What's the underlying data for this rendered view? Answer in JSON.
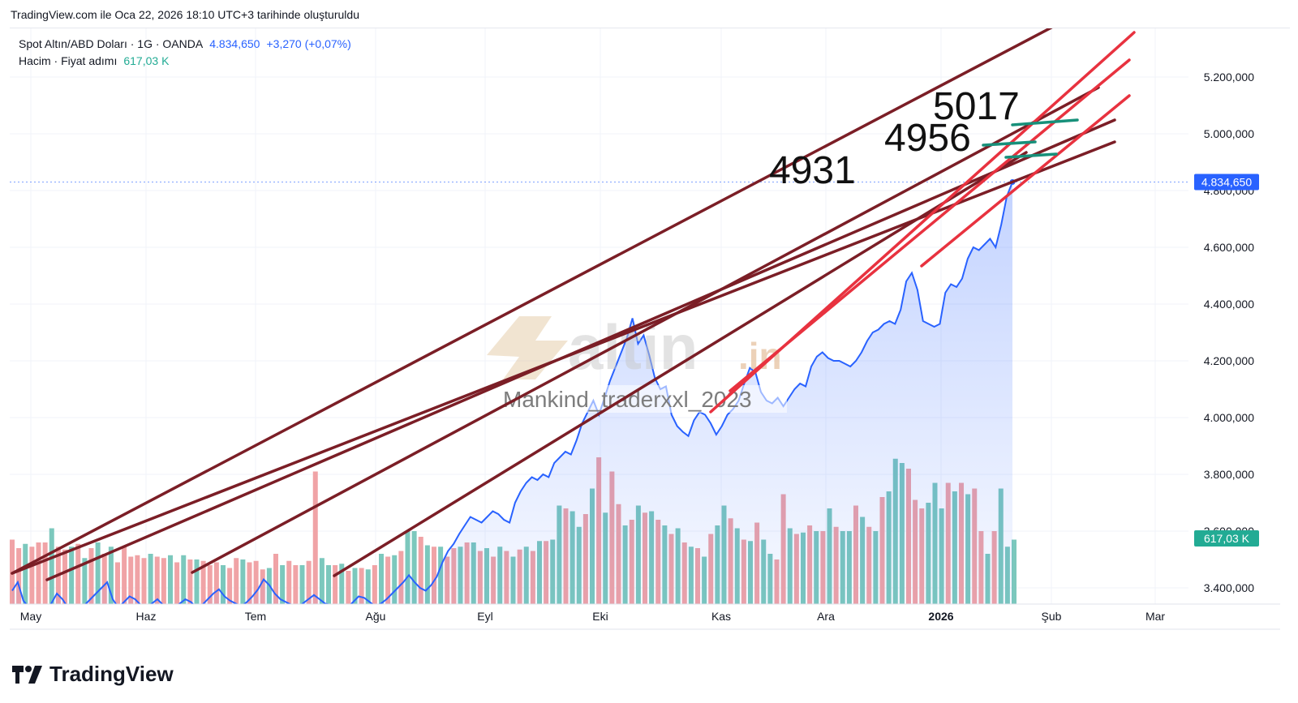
{
  "header": {
    "caption": "TradingView.com ile Oca 22, 2026 18:10 UTC+3 tarihinde oluşturuldu"
  },
  "legend": {
    "symbol": "Spot Altın/ABD Doları · 1G · OANDA",
    "last": "4.834,650",
    "change": "+3,270 (+0,07%)",
    "volume_label": "Hacim · Fiyat adımı",
    "volume_value": "617,03 K"
  },
  "price_tag": "4.834,650",
  "volume_tag": "617,03 K",
  "watermark": {
    "brand": "altin",
    "suffix": ".in",
    "user": "Mankind_traderxxl_2023"
  },
  "annotations": [
    "4931",
    "4956",
    "5017"
  ],
  "footer": {
    "brand": "TradingView"
  },
  "colors": {
    "price_line": "#2962ff",
    "up_volume": "#7cc8bd",
    "down_volume": "#f0a3a6",
    "dark_trend": "#7b1e26",
    "red_trend": "#e8323f",
    "target": "#17907a"
  },
  "chart_data": {
    "type": "line",
    "title": "",
    "y_ticks": [
      "5.200,000",
      "5.000,000",
      "4.800,000",
      "4.600,000",
      "4.400,000",
      "4.200,000",
      "4.000,000",
      "3.800,000",
      "3.600,000",
      "3.400,000"
    ],
    "ylim": [
      3350,
      5350
    ],
    "x_ticks": [
      "May",
      "Haz",
      "Tem",
      "Ağu",
      "Eyl",
      "Eki",
      "Kas",
      "Ara",
      "2026",
      "Şub",
      "Mar"
    ],
    "series": [
      {
        "values": [
          3390,
          3420,
          3355,
          3330,
          3310,
          3290,
          3300,
          3345,
          3380,
          3360,
          3330,
          3300,
          3320,
          3340,
          3360,
          3380,
          3400,
          3420,
          3360,
          3330,
          3350,
          3370,
          3360,
          3340,
          3330,
          3345,
          3360,
          3340,
          3320,
          3330,
          3345,
          3360,
          3350,
          3330,
          3340,
          3360,
          3380,
          3395,
          3370,
          3355,
          3345,
          3335,
          3350,
          3370,
          3395,
          3430,
          3410,
          3380,
          3360,
          3350,
          3340,
          3330,
          3345,
          3360,
          3375,
          3360,
          3345,
          3340,
          3335,
          3320,
          3330,
          3350,
          3370,
          3365,
          3350,
          3335,
          3345,
          3360,
          3380,
          3400,
          3420,
          3445,
          3420,
          3400,
          3390,
          3410,
          3440,
          3490,
          3530,
          3555,
          3590,
          3620,
          3650,
          3640,
          3630,
          3650,
          3670,
          3660,
          3640,
          3630,
          3700,
          3740,
          3770,
          3790,
          3780,
          3800,
          3790,
          3840,
          3860,
          3880,
          3870,
          3920,
          3980,
          4020,
          4060,
          4010,
          4070,
          4130,
          4180,
          4230,
          4280,
          4350,
          4260,
          4290,
          4220,
          4140,
          4100,
          4110,
          4010,
          3970,
          3950,
          3935,
          3990,
          4020,
          4010,
          3980,
          3940,
          3970,
          4010,
          4030,
          4060,
          4120,
          4175,
          4160,
          4090,
          4060,
          4050,
          4070,
          4040,
          4070,
          4100,
          4120,
          4110,
          4180,
          4215,
          4230,
          4210,
          4200,
          4200,
          4190,
          4180,
          4200,
          4230,
          4270,
          4300,
          4310,
          4330,
          4340,
          4330,
          4380,
          4480,
          4510,
          4450,
          4340,
          4330,
          4320,
          4330,
          4440,
          4470,
          4460,
          4490,
          4560,
          4600,
          4590,
          4610,
          4630,
          4600,
          4680,
          4780,
          4830
        ]
      }
    ],
    "volume": {
      "values": [
        3570,
        3540,
        3555,
        3545,
        3560,
        3560,
        3610,
        3545,
        3535,
        3545,
        3555,
        3505,
        3540,
        3560,
        3520,
        3545,
        3490,
        3545,
        3510,
        3515,
        3505,
        3520,
        3510,
        3505,
        3515,
        3490,
        3515,
        3500,
        3500,
        3495,
        3480,
        3490,
        3480,
        3470,
        3505,
        3500,
        3490,
        3495,
        3465,
        3470,
        3520,
        3480,
        3495,
        3480,
        3480,
        3495,
        3810,
        3505,
        3480,
        3480,
        3485,
        3460,
        3470,
        3470,
        3465,
        3480,
        3520,
        3510,
        3515,
        3530,
        3600,
        3600,
        3580,
        3550,
        3545,
        3545,
        3510,
        3540,
        3545,
        3560,
        3560,
        3530,
        3540,
        3510,
        3545,
        3530,
        3510,
        3535,
        3545,
        3530,
        3565,
        3565,
        3570,
        3690,
        3680,
        3670,
        3615,
        3660,
        3750,
        3860,
        3665,
        3810,
        3695,
        3620,
        3640,
        3690,
        3665,
        3670,
        3640,
        3620,
        3590,
        3610,
        3560,
        3545,
        3540,
        3510,
        3590,
        3620,
        3690,
        3645,
        3610,
        3570,
        3565,
        3630,
        3570,
        3520,
        3500,
        3730,
        3610,
        3590,
        3595,
        3620,
        3600,
        3600,
        3680,
        3615,
        3600,
        3600,
        3690,
        3650,
        3615,
        3600,
        3720,
        3740,
        3855,
        3840,
        3820,
        3710,
        3680,
        3700,
        3770,
        3680,
        3770,
        3740,
        3770,
        3730,
        3750,
        3600,
        3520,
        3600,
        3750,
        3545,
        3570
      ],
      "up_indices": [
        2,
        6,
        9,
        11,
        13,
        15,
        21,
        24,
        26,
        28,
        32,
        35,
        39,
        41,
        44,
        47,
        48,
        50,
        52,
        54,
        56,
        58,
        60,
        61,
        63,
        65,
        68,
        70,
        72,
        74,
        76,
        78,
        80,
        82,
        83,
        85,
        86,
        88,
        90,
        93,
        95,
        97,
        99,
        101,
        103,
        105,
        107,
        108,
        110,
        112,
        114,
        115,
        118,
        120,
        122,
        124,
        126,
        127,
        129,
        131,
        133,
        134,
        135,
        139,
        140,
        141,
        143,
        145,
        148,
        150,
        151,
        152
      ]
    },
    "trendlines": {
      "dark": [
        {
          "from": [
            "May",
            3470
          ],
          "to": [
            "Şub",
            5420
          ]
        },
        {
          "from": [
            "May",
            3450
          ],
          "to": [
            "Şub",
            4970
          ]
        },
        {
          "from": [
            "May",
            3490
          ],
          "to": [
            "Şub",
            5060
          ]
        },
        {
          "from": [
            "Haz",
            3455
          ],
          "to": [
            "Şub",
            5170
          ]
        },
        {
          "from": [
            "Tem",
            3440
          ],
          "to": [
            "Şub",
            5030
          ]
        }
      ],
      "red": [
        {
          "from": [
            "Kas",
            4030
          ],
          "to": [
            "Mar",
            5360
          ]
        },
        {
          "from": [
            "Kas",
            4050
          ],
          "to": [
            "Mar",
            5250
          ]
        },
        {
          "from": [
            "Ara",
            4530
          ],
          "to": [
            "Mar",
            5140
          ]
        }
      ]
    }
  }
}
